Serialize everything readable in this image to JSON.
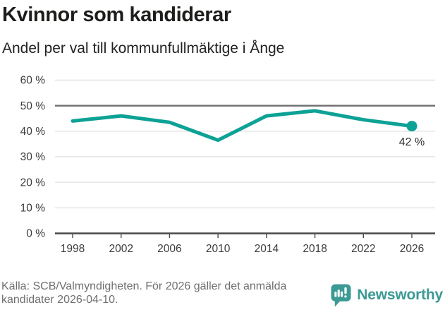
{
  "header": {
    "title": "Kvinnor som kandiderar",
    "subtitle": "Andel per val till kommunfullmäktige i Ånge"
  },
  "chart_data": {
    "type": "line",
    "title": "Kvinnor som kandiderar",
    "subtitle": "Andel per val till kommunfullmäktige i Ånge",
    "categories": [
      "1998",
      "2002",
      "2006",
      "2010",
      "2014",
      "2018",
      "2022",
      "2026"
    ],
    "values": [
      44,
      46,
      43.5,
      36.5,
      46,
      48,
      44.5,
      42
    ],
    "unit": "%",
    "xlabel": "",
    "ylabel": "",
    "ylim": [
      0,
      60
    ],
    "yticks": [
      0,
      10,
      20,
      30,
      40,
      50,
      60
    ],
    "ytick_suffix": " %",
    "reference_line": 50,
    "end_label": "42 %",
    "grid": true,
    "legend": "none",
    "colors": {
      "line": "#0ca295",
      "grid": "#e3e3e3",
      "reference": "#6e6e6e",
      "axis": "#4a4a4a",
      "tick_label": "#3b3b3b",
      "end_label": "#2f2f2f"
    }
  },
  "footer": {
    "source": "Källa: SCB/Valmyndigheten. För 2026 gäller det anmälda kandidater 2026-04-10.",
    "brand": "Newsworthy",
    "brand_color": "#3c9a95"
  }
}
